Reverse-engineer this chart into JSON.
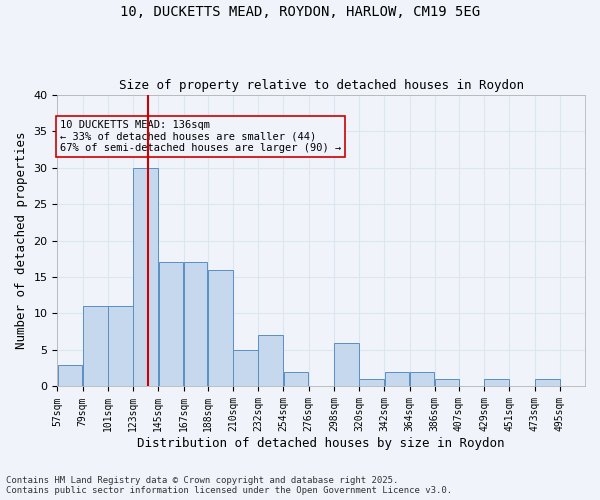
{
  "title_line1": "10, DUCKETTS MEAD, ROYDON, HARLOW, CM19 5EG",
  "title_line2": "Size of property relative to detached houses in Roydon",
  "xlabel": "Distribution of detached houses by size in Roydon",
  "ylabel": "Number of detached properties",
  "bin_labels": [
    "57sqm",
    "79sqm",
    "101sqm",
    "123sqm",
    "145sqm",
    "167sqm",
    "188sqm",
    "210sqm",
    "232sqm",
    "254sqm",
    "276sqm",
    "298sqm",
    "320sqm",
    "342sqm",
    "364sqm",
    "386sqm",
    "407sqm",
    "429sqm",
    "451sqm",
    "473sqm",
    "495sqm"
  ],
  "bar_values": [
    3,
    11,
    11,
    30,
    17,
    17,
    16,
    5,
    7,
    2,
    0,
    6,
    1,
    2,
    2,
    1,
    0,
    1,
    0,
    1,
    0
  ],
  "bar_color": "#c5d8ed",
  "bar_edge_color": "#5a8fc2",
  "grid_color": "#dce6f0",
  "vline_x": 136,
  "vline_color": "#cc0000",
  "annotation_text": "10 DUCKETTS MEAD: 136sqm\n← 33% of detached houses are smaller (44)\n67% of semi-detached houses are larger (90) →",
  "annotation_box_edgecolor": "#cc0000",
  "bg_color": "#f0f4fa",
  "footnote": "Contains HM Land Registry data © Crown copyright and database right 2025.\nContains public sector information licensed under the Open Government Licence v3.0.",
  "ylim": [
    0,
    40
  ],
  "yticks": [
    0,
    5,
    10,
    15,
    20,
    25,
    30,
    35,
    40
  ],
  "bin_edges": [
    57,
    79,
    101,
    123,
    145,
    167,
    188,
    210,
    232,
    254,
    276,
    298,
    320,
    342,
    364,
    386,
    407,
    429,
    451,
    473,
    495,
    517
  ]
}
